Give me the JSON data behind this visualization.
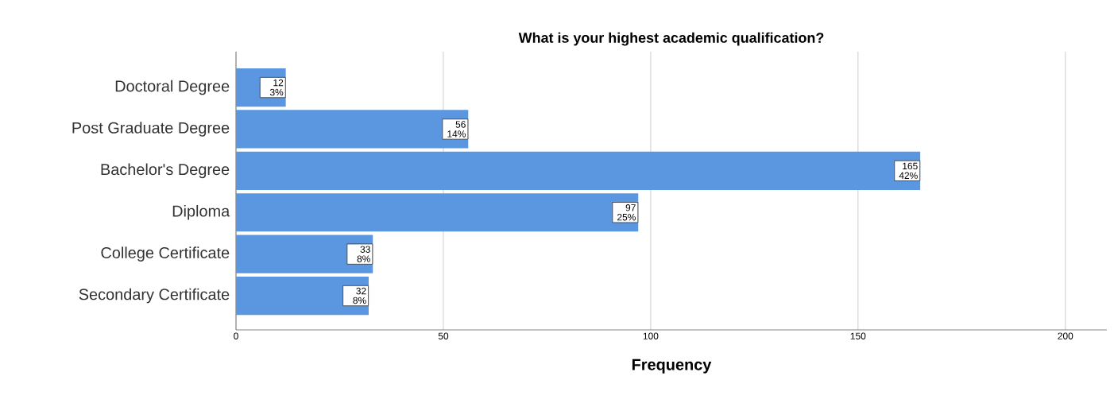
{
  "chart_data": {
    "type": "bar",
    "orientation": "horizontal",
    "title": "What is your highest academic qualification?",
    "xlabel": "Frequency",
    "categories": [
      "Doctoral Degree",
      "Post Graduate Degree",
      "Bachelor's Degree",
      "Diploma",
      "College Certificate",
      "Secondary Certificate"
    ],
    "values": [
      12,
      56,
      165,
      97,
      33,
      32
    ],
    "value_labels": [
      "12 3%",
      "56 14%",
      "165 42%",
      "97 25%",
      "33 8%",
      "32 8%"
    ],
    "color": "#5b97e1",
    "xlim": [
      0,
      210
    ],
    "xticks": [
      0,
      50,
      100,
      150,
      200
    ],
    "grid": "x"
  }
}
